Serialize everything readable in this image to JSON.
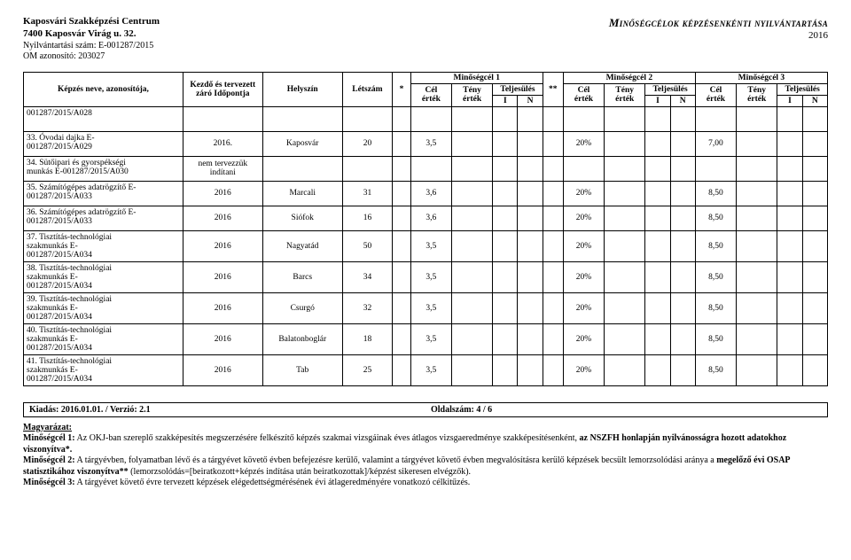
{
  "header": {
    "org_name": "Kaposvári Szakképzési Centrum",
    "org_addr": "7400 Kaposvár Virág u. 32.",
    "org_reg": "Nyilvántartási szám: E-001287/2015",
    "org_om": "OM azonosító: 203027",
    "title": "Minőségcélok képzésenkénti nyilvántartása",
    "year": "2016"
  },
  "thead": {
    "kepzes": "Képzés neve, azonosítója,",
    "kezdo": "Kezdő és tervezett záró Időpontja",
    "hely": "Helyszín",
    "letszam": "Létszám",
    "star": "*",
    "mc1": "Minőségcél 1",
    "mc2": "Minőségcél 2",
    "mc3": "Minőségcél 3",
    "cel": "Cél",
    "teny": "Tény",
    "telj": "Teljesülés",
    "ertek": "érték",
    "I": "I",
    "N": "N",
    "starstar": "**"
  },
  "preRow": {
    "code": "001287/2015/A028"
  },
  "rows": [
    {
      "num": "33.",
      "name": "Óvodai dajka E-",
      "sub": "001287/2015/A029",
      "ido": "2016.",
      "hely": "Kaposvár",
      "let": "20",
      "cel1": "3,5",
      "cel2": "20%",
      "cel3": "7,00"
    },
    {
      "num": "34.",
      "name": "Sütőipari és gyorspékségi",
      "sub": "munkás E-001287/2015/A030",
      "ido": "nem tervezzük indítani",
      "hely": "",
      "let": "",
      "cel1": "",
      "cel2": "",
      "cel3": ""
    },
    {
      "num": "35.",
      "name": "Számítógépes adatrögzítő E-",
      "sub": "001287/2015/A033",
      "ido": "2016",
      "hely": "Marcali",
      "let": "31",
      "cel1": "3,6",
      "cel2": "20%",
      "cel3": "8,50"
    },
    {
      "num": "36.",
      "name": "Számítógépes adatrögzítő E-",
      "sub": "001287/2015/A033",
      "ido": "2016",
      "hely": "Siófok",
      "let": "16",
      "cel1": "3,6",
      "cel2": "20%",
      "cel3": "8,50"
    },
    {
      "num": "37.",
      "name": "Tisztítás-technológiai",
      "sub": "szakmunkás E-\n001287/2015/A034",
      "ido": "2016",
      "hely": "Nagyatád",
      "let": "50",
      "cel1": "3,5",
      "cel2": "20%",
      "cel3": "8,50"
    },
    {
      "num": "38.",
      "name": "Tisztítás-technológiai",
      "sub": "szakmunkás E-\n001287/2015/A034",
      "ido": "2016",
      "hely": "Barcs",
      "let": "34",
      "cel1": "3,5",
      "cel2": "20%",
      "cel3": "8,50"
    },
    {
      "num": "39.",
      "name": "Tisztítás-technológiai",
      "sub": "szakmunkás E-\n001287/2015/A034",
      "ido": "2016",
      "hely": "Csurgó",
      "let": "32",
      "cel1": "3,5",
      "cel2": "20%",
      "cel3": "8,50"
    },
    {
      "num": "40.",
      "name": "Tisztítás-technológiai",
      "sub": "szakmunkás E-\n001287/2015/A034",
      "ido": "2016",
      "hely": "Balatonboglár",
      "let": "18",
      "cel1": "3,5",
      "cel2": "20%",
      "cel3": "8,50"
    },
    {
      "num": "41.",
      "name": "Tisztítás-technológiai",
      "sub": "szakmunkás E-\n001287/2015/A034",
      "ido": "2016",
      "hely": "Tab",
      "let": "25",
      "cel1": "3,5",
      "cel2": "20%",
      "cel3": "8,50"
    }
  ],
  "footer": {
    "kiadas": "Kiadás: 2016.01.01. / Verzió: 2.1",
    "oldal": "Oldalszám: 4 / 6",
    "magy_title": "Magyarázat:",
    "m1a": "Minőségcél 1:",
    "m1b": " Az OKJ-ban szereplő szakképesítés megszerzésére felkészítő képzés szakmai vizsgáinak éves átlagos vizsgaeredménye szakképesítésenként, ",
    "m1c": "az NSZFH honlapján nyilvánosságra hozott adatokhoz viszonyítva*.",
    "m2a": "Minőségcél 2:",
    "m2b": " A tárgyévben, folyamatban lévő és a tárgyévet követő évben befejezésre kerülő, valamint a tárgyévet követő évben megvalósításra kerülő képzések becsült lemorzsolódási aránya a ",
    "m2c": "megelőző évi OSAP statisztikához viszonyítva**",
    "m2d": " (lemorzsolódás=[beiratkozott+képzés indítása után beiratkozottak]/képzést sikeresen elvégzők).",
    "m3a": "Minőségcél 3:",
    "m3b": " A tárgyévet követő évre tervezett képzések elégedettségmérésének évi átlageredményére vonatkozó célkitűzés."
  }
}
